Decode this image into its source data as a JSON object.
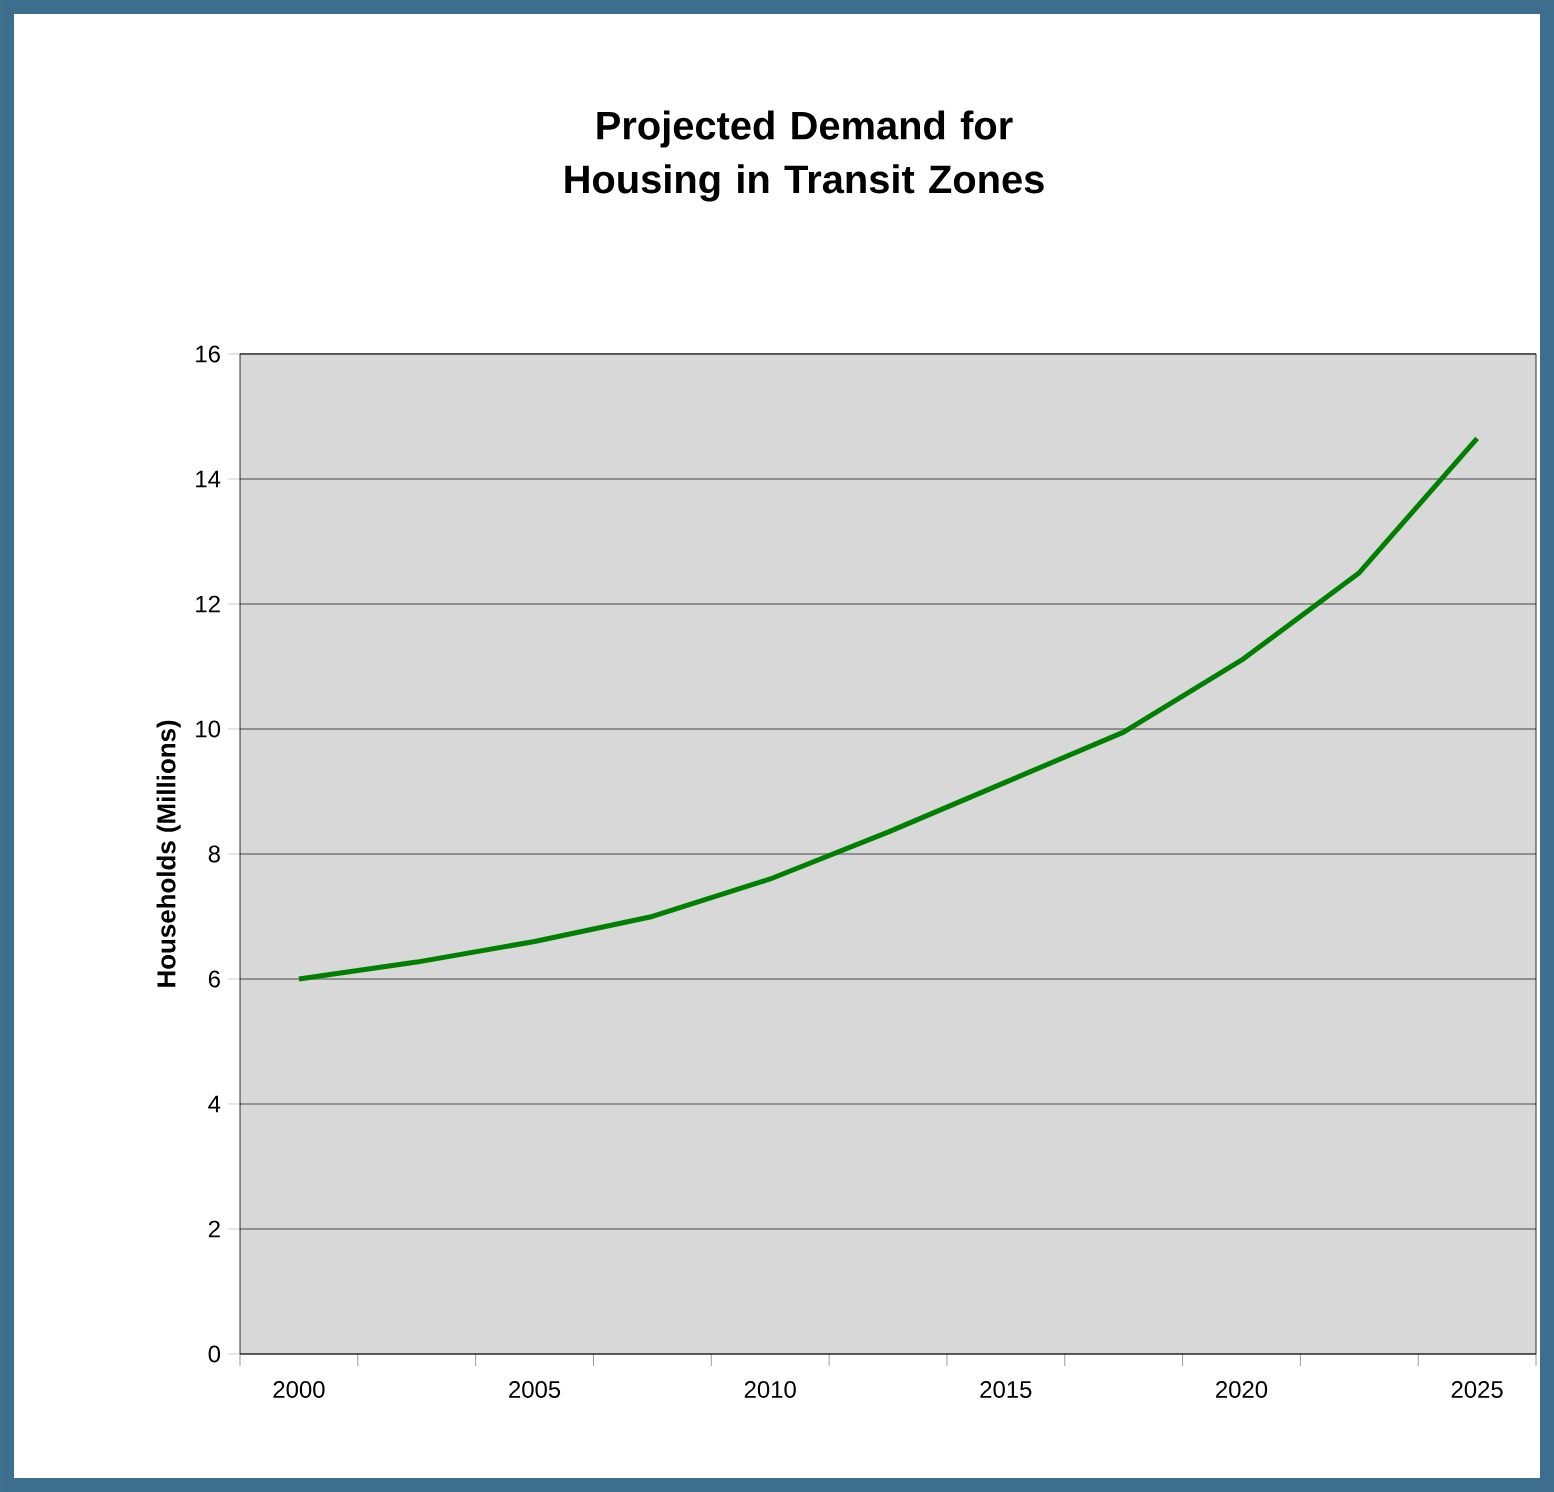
{
  "chart_data": {
    "type": "line",
    "title": "Projected Demand for Housing in Transit Zones",
    "ylabel": "Households (Millions)",
    "categories": [
      "2000",
      null,
      "2005",
      null,
      "2010",
      null,
      "2015",
      null,
      "2020",
      null,
      "2025"
    ],
    "series": [
      {
        "color": "#008000",
        "values": [
          6.0,
          6.27,
          6.6,
          7.0,
          7.6,
          8.35,
          9.15,
          9.95,
          11.1,
          12.5,
          14.65
        ]
      }
    ],
    "ylim": [
      0,
      16
    ],
    "yticks": [
      0,
      2,
      4,
      6,
      8,
      10,
      12,
      14,
      16
    ],
    "grid": "y",
    "marker": "none",
    "line_style": "solid"
  }
}
